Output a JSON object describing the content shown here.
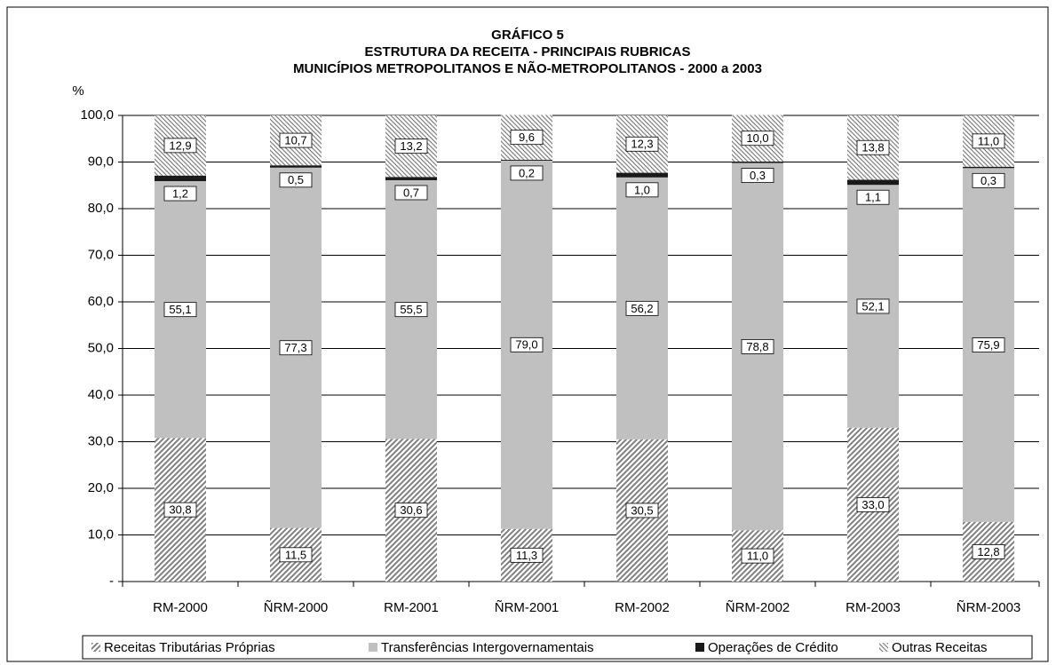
{
  "chart_data": {
    "type": "stacked-bar",
    "title": [
      "GRÁFICO 5",
      "ESTRUTURA DA RECEITA - PRINCIPAIS RUBRICAS",
      "MUNICÍPIOS METROPOLITANOS E NÃO-METROPOLITANOS - 2000 a 2003"
    ],
    "y_label": "%",
    "categories": [
      "RM-2000",
      "ÑRM-2000",
      "RM-2001",
      "ÑRM-2001",
      "RM-2002",
      "ÑRM-2002",
      "RM-2003",
      "ÑRM-2003"
    ],
    "series": [
      {
        "name": "Receitas Tributárias Próprias",
        "color": "#7f7f7f",
        "pattern": "forward",
        "values": [
          30.8,
          11.5,
          30.6,
          11.3,
          30.5,
          11.0,
          33.0,
          12.8
        ],
        "value_labels": [
          "30,8",
          "11,5",
          "30,6",
          "11,3",
          "30,5",
          "11,0",
          "33,0",
          "12,8"
        ]
      },
      {
        "name": "Transferências Intergovernamentais",
        "color": "#c0c0c0",
        "pattern": "solid",
        "values": [
          55.1,
          77.3,
          55.5,
          79.0,
          56.2,
          78.8,
          52.1,
          75.9
        ],
        "value_labels": [
          "55,1",
          "77,3",
          "55,5",
          "79,0",
          "56,2",
          "78,8",
          "52,1",
          "75,9"
        ]
      },
      {
        "name": "Operações de Crédito",
        "color": "#1a1a1a",
        "pattern": "solid",
        "values": [
          1.2,
          0.5,
          0.7,
          0.2,
          1.0,
          0.3,
          1.1,
          0.3
        ],
        "value_labels": [
          "1,2",
          "0,5",
          "0,7",
          "0,2",
          "1,0",
          "0,3",
          "1,1",
          "0,3"
        ]
      },
      {
        "name": "Outras Receitas",
        "color": "#7f7f7f",
        "pattern": "backward",
        "values": [
          12.9,
          10.7,
          13.2,
          9.6,
          12.3,
          10.0,
          13.8,
          11.0
        ],
        "value_labels": [
          "12,9",
          "10,7",
          "13,2",
          "9,6",
          "12,3",
          "10,0",
          "13,8",
          "11,0"
        ]
      }
    ],
    "ylim": [
      0,
      100
    ],
    "yticks": [
      {
        "value": 0,
        "label": "-"
      },
      {
        "value": 10,
        "label": "10,0"
      },
      {
        "value": 20,
        "label": "20,0"
      },
      {
        "value": 30,
        "label": "30,0"
      },
      {
        "value": 40,
        "label": "40,0"
      },
      {
        "value": 50,
        "label": "50,0"
      },
      {
        "value": 60,
        "label": "60,0"
      },
      {
        "value": 70,
        "label": "70,0"
      },
      {
        "value": 80,
        "label": "80,0"
      },
      {
        "value": 90,
        "label": "90,0"
      },
      {
        "value": 100,
        "label": "100,0"
      }
    ],
    "grid": true,
    "legend": "bottom"
  }
}
